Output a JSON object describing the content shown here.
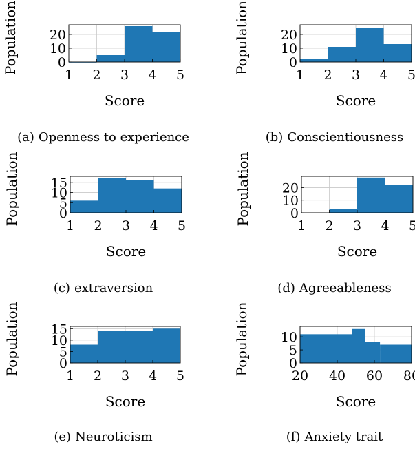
{
  "chart_data": [
    {
      "type": "bar",
      "subplot_label": "(a)",
      "title": "Openness to experience",
      "xlabel": "Score",
      "ylabel": "Population",
      "bin_edges": [
        1,
        2,
        3,
        4,
        5
      ],
      "values": [
        0,
        5,
        26,
        22
      ],
      "xticks": [
        "1",
        "2",
        "3",
        "4",
        "5"
      ],
      "yticks": [
        0,
        10,
        20
      ],
      "xlim": [
        1,
        5
      ],
      "ylim": [
        0,
        27
      ],
      "grid": true,
      "color": "#1f77b4"
    },
    {
      "type": "bar",
      "subplot_label": "(b)",
      "title": "Conscientiousness",
      "xlabel": "Score",
      "ylabel": "Population",
      "bin_edges": [
        1,
        2,
        3,
        4,
        5
      ],
      "values": [
        2,
        11,
        25,
        13
      ],
      "xticks": [
        "1",
        "2",
        "3",
        "4",
        "5"
      ],
      "yticks": [
        0,
        10,
        20
      ],
      "xlim": [
        1,
        5
      ],
      "ylim": [
        0,
        27
      ],
      "grid": true,
      "color": "#1f77b4"
    },
    {
      "type": "bar",
      "subplot_label": "(c)",
      "title": "extraversion",
      "xlabel": "Score",
      "ylabel": "Population",
      "bin_edges": [
        1,
        2,
        3,
        4,
        5
      ],
      "values": [
        6,
        17,
        16,
        12
      ],
      "xticks": [
        "1",
        "2",
        "3",
        "4",
        "5"
      ],
      "yticks": [
        0,
        5,
        10,
        15
      ],
      "xlim": [
        1,
        5
      ],
      "ylim": [
        0,
        18
      ],
      "grid": true,
      "color": "#1f77b4"
    },
    {
      "type": "bar",
      "subplot_label": "(d)",
      "title": "Agreeableness",
      "xlabel": "Score",
      "ylabel": "Population",
      "bin_edges": [
        1,
        2,
        3,
        4,
        5
      ],
      "values": [
        0,
        3,
        28,
        22
      ],
      "xticks": [
        "1",
        "2",
        "3",
        "4",
        "5"
      ],
      "yticks": [
        0,
        10,
        20
      ],
      "xlim": [
        1,
        5
      ],
      "ylim": [
        0,
        29
      ],
      "grid": true,
      "color": "#1f77b4"
    },
    {
      "type": "bar",
      "subplot_label": "(e)",
      "title": "Neuroticism",
      "xlabel": "Score",
      "ylabel": "Population",
      "bin_edges": [
        1,
        2,
        3,
        4,
        5
      ],
      "values": [
        8,
        14,
        14,
        15
      ],
      "xticks": [
        "1",
        "2",
        "3",
        "4",
        "5"
      ],
      "yticks": [
        0,
        5,
        10,
        15
      ],
      "xlim": [
        1,
        5
      ],
      "ylim": [
        0,
        16
      ],
      "grid": true,
      "color": "#1f77b4"
    },
    {
      "type": "bar",
      "subplot_label": "(f)",
      "title": "Anxiety trait",
      "xlabel": "Score",
      "ylabel": "Population",
      "bin_edges": [
        20,
        30,
        40,
        48,
        55,
        63,
        80
      ],
      "values": [
        11,
        11,
        11,
        13,
        8,
        7
      ],
      "xticks": [
        "20",
        "40",
        "60",
        "80"
      ],
      "yticks": [
        0,
        5,
        10
      ],
      "xlim": [
        20,
        80
      ],
      "ylim": [
        0,
        14
      ],
      "grid": true,
      "color": "#1f77b4"
    }
  ]
}
